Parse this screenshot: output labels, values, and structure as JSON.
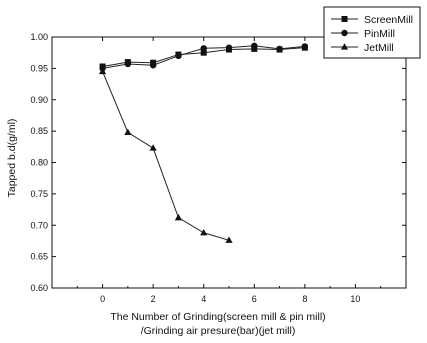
{
  "chart_data": {
    "type": "line",
    "title": "",
    "xlabel": [
      "The Number of Grinding(screen mill & pin mill)",
      "/Grinding air presure(bar)(jet mill)"
    ],
    "ylabel": "Tapped b.d(g/ml)",
    "xlim": [
      -2,
      12
    ],
    "ylim": [
      0.6,
      1.0
    ],
    "xticks": [
      0,
      2,
      4,
      6,
      8,
      10
    ],
    "yticks": [
      0.6,
      0.65,
      0.7,
      0.75,
      0.8,
      0.85,
      0.9,
      0.95,
      1.0
    ],
    "grid": false,
    "legend_position": "top-right",
    "series": [
      {
        "name": "ScreenMill",
        "marker": "square",
        "x": [
          0,
          1,
          2,
          3,
          4,
          5,
          6,
          7,
          8
        ],
        "y": [
          0.953,
          0.96,
          0.959,
          0.972,
          0.975,
          0.98,
          0.981,
          0.98,
          0.983
        ]
      },
      {
        "name": "PinMill",
        "marker": "circle",
        "x": [
          0,
          1,
          2,
          3,
          4,
          5,
          6,
          7,
          8
        ],
        "y": [
          0.95,
          0.957,
          0.955,
          0.97,
          0.982,
          0.983,
          0.986,
          0.981,
          0.985
        ]
      },
      {
        "name": "JetMill",
        "marker": "triangle",
        "x": [
          0,
          1,
          2,
          3,
          4,
          5
        ],
        "y": [
          0.945,
          0.848,
          0.823,
          0.712,
          0.688,
          0.676
        ]
      }
    ]
  },
  "colors": {
    "line": "#222222",
    "marker": "#111111",
    "axis": "#111111"
  }
}
